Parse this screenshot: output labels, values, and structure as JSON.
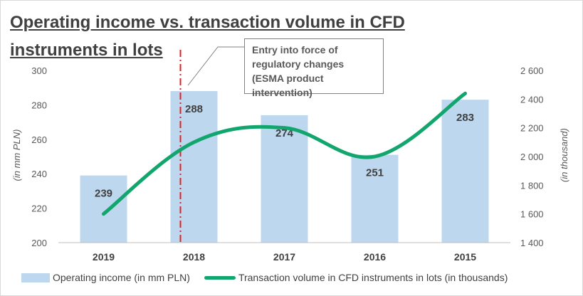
{
  "title": "Operating income vs. transaction volume in CFD instruments in lots",
  "annotation": "Entry into force of regulatory changes (ESMA product intervention)",
  "chart_data": {
    "type": "bar+line",
    "categories": [
      "2019",
      "2018",
      "2017",
      "2016",
      "2015"
    ],
    "series": [
      {
        "name": "Operating income (in mm PLN)",
        "type": "bar",
        "axis": "left",
        "values": [
          239,
          288,
          274,
          251,
          283
        ],
        "color": "#bdd7ee"
      },
      {
        "name": "Transaction volume in CFD instruments in lots (in thousands)",
        "type": "line",
        "axis": "right",
        "values": [
          1600,
          2100,
          2200,
          2000,
          2440
        ],
        "color": "#12a66e"
      }
    ],
    "y_left": {
      "label": "(in mm PLN)",
      "min": 200,
      "max": 300,
      "ticks": [
        "200",
        "220",
        "240",
        "260",
        "280",
        "300"
      ]
    },
    "y_right": {
      "label": "(in thousand)",
      "min": 1400,
      "max": 2600,
      "ticks": [
        "1 400",
        "1 600",
        "1 800",
        "2 000",
        "2 200",
        "2 400",
        "2 600"
      ]
    },
    "marker_line": {
      "category": "2018",
      "color": "#e02020",
      "style": "dash-dot"
    },
    "legend": "bottom",
    "grid": false
  }
}
